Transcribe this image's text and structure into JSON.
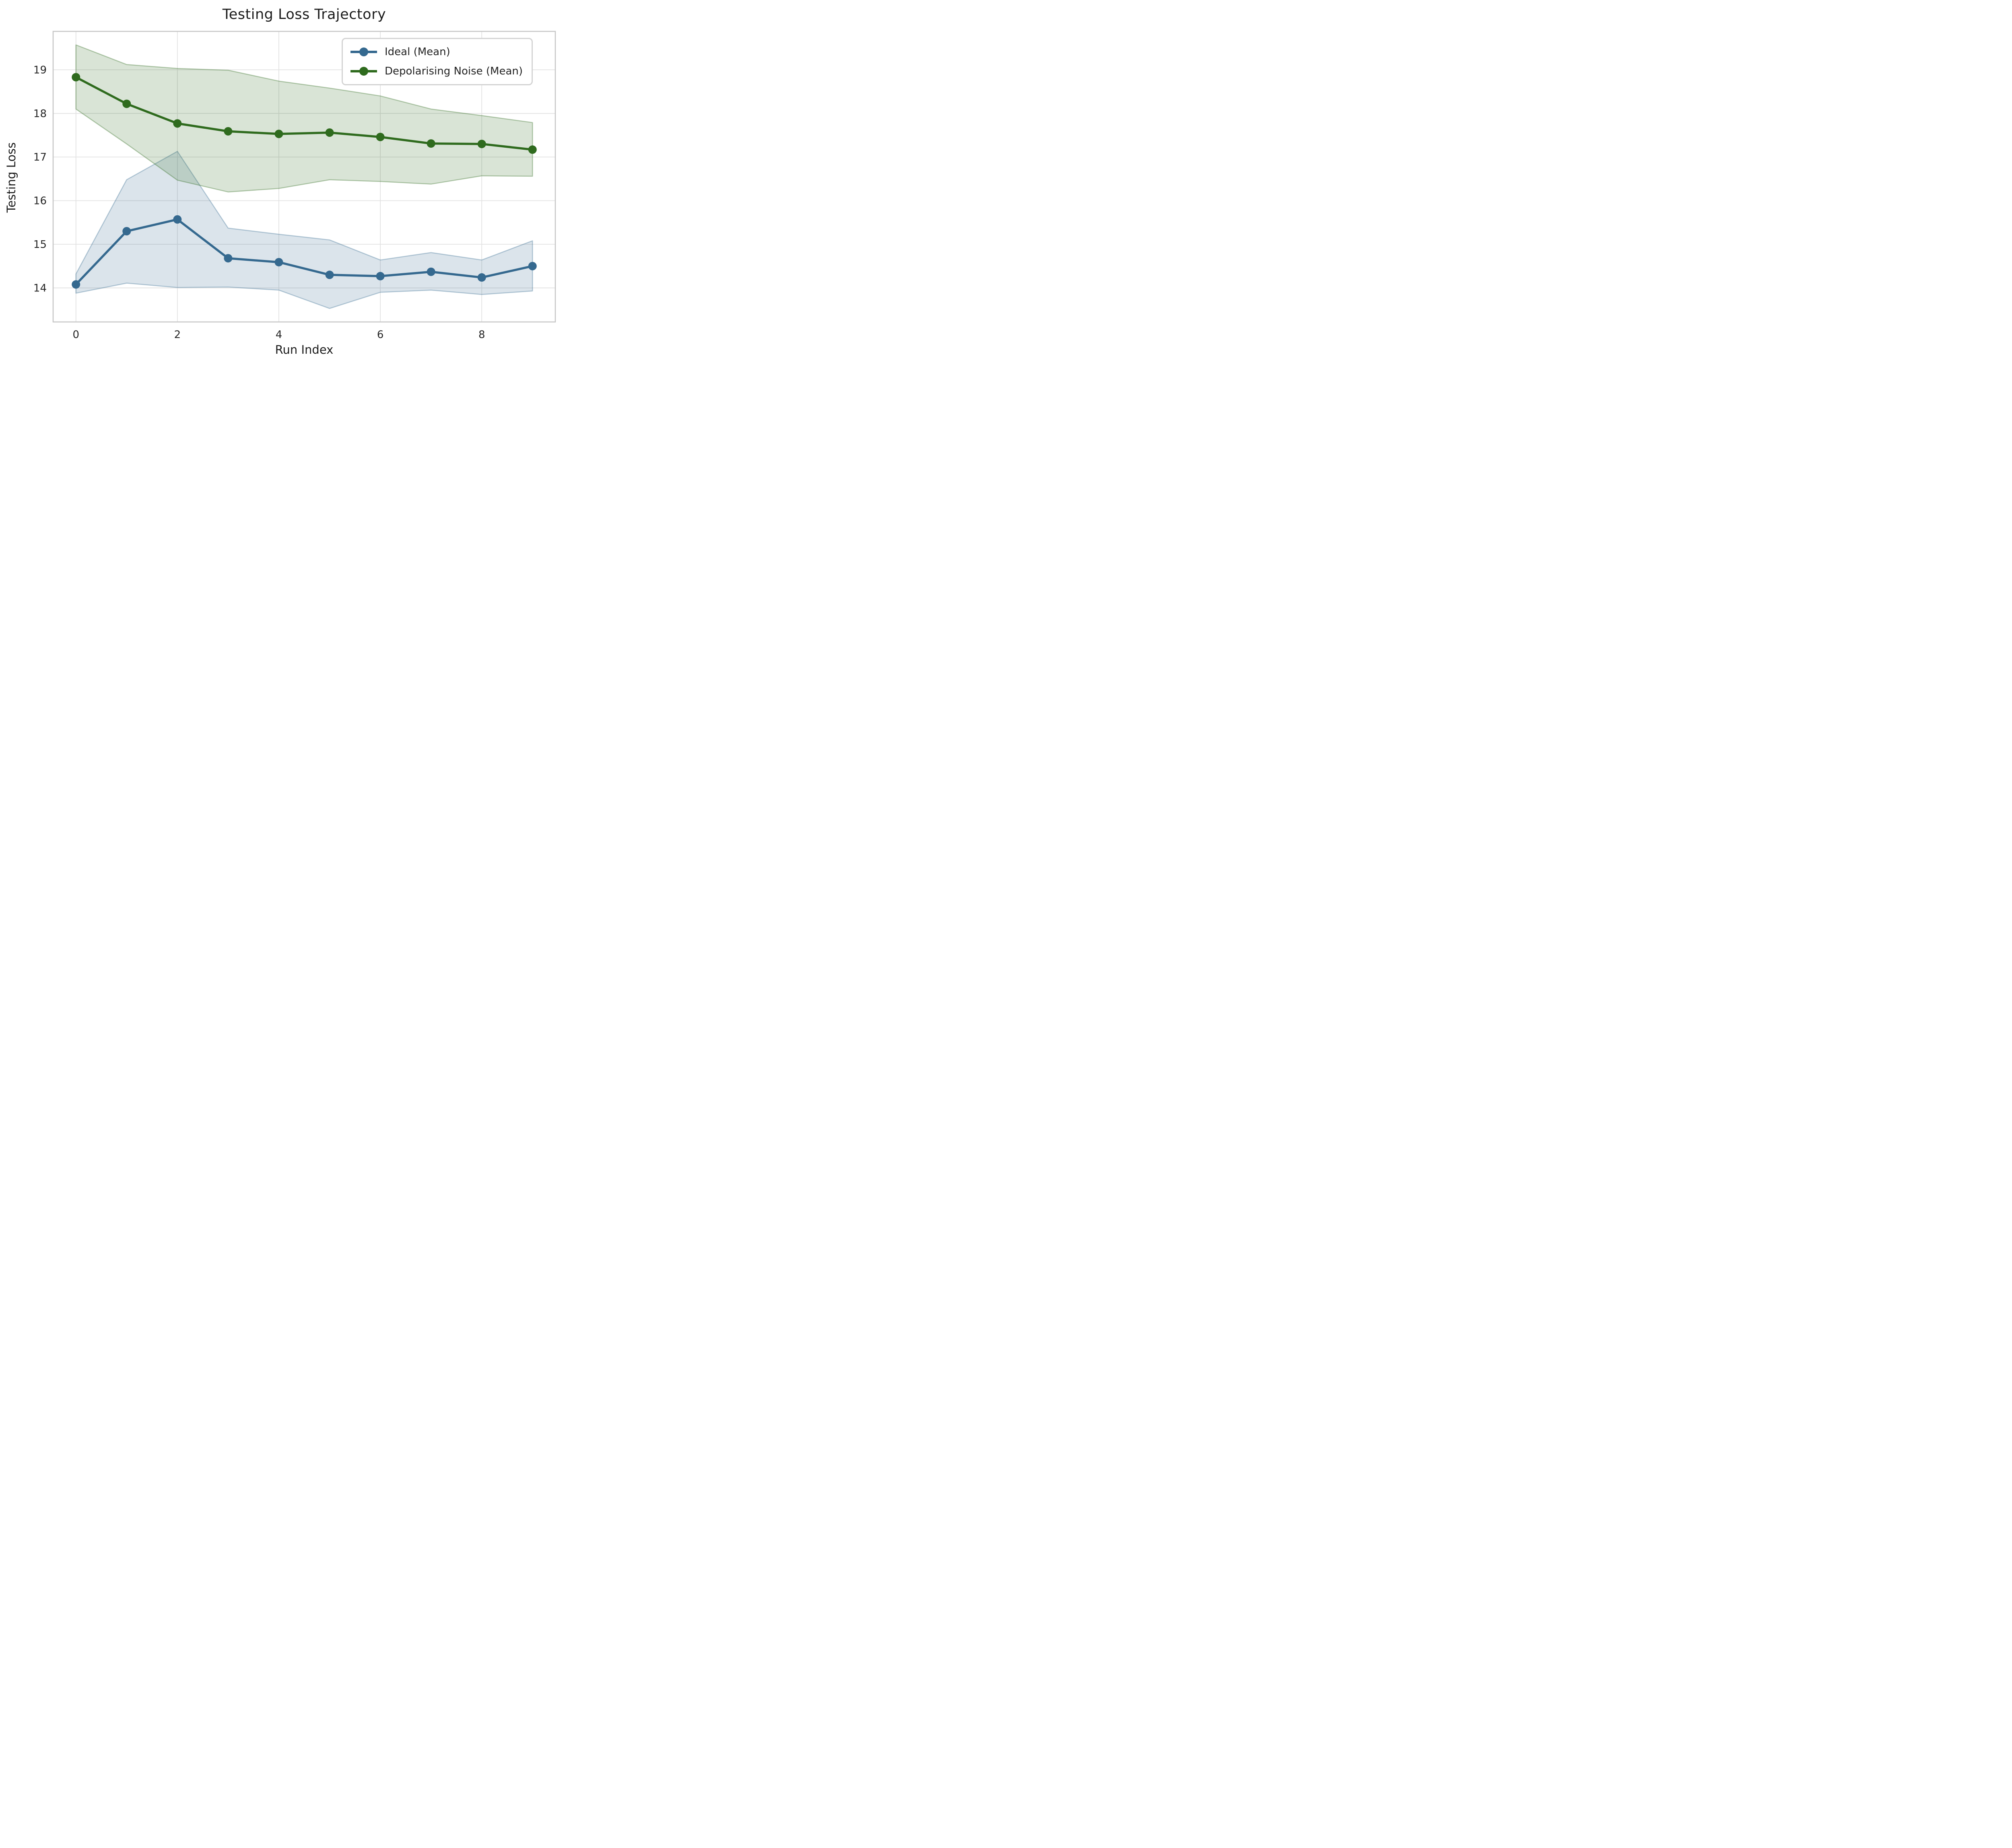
{
  "chart_data": {
    "type": "line",
    "title": "Testing Loss Trajectory",
    "xlabel": "Run Index",
    "ylabel": "Testing Loss",
    "x": [
      0,
      1,
      2,
      3,
      4,
      5,
      6,
      7,
      8,
      9
    ],
    "xticks": [
      0,
      2,
      4,
      6,
      8
    ],
    "yticks": [
      14,
      15,
      16,
      17,
      18,
      19
    ],
    "xlim": [
      -0.45,
      9.45
    ],
    "ylim": [
      13.22,
      19.88
    ],
    "grid": true,
    "legend_position": "upper right",
    "series": [
      {
        "name": "Ideal (Mean)",
        "color": "#35698F",
        "band_fill_rgba": "rgba(53,105,143,0.18)",
        "band_edge_rgba": "rgba(53,105,143,0.35)",
        "values": [
          14.08,
          15.3,
          15.57,
          14.68,
          14.59,
          14.3,
          14.27,
          14.37,
          14.24,
          14.5
        ],
        "band_upper": [
          14.32,
          16.48,
          17.13,
          15.37,
          15.23,
          15.1,
          14.64,
          14.81,
          14.64,
          15.08
        ],
        "band_lower": [
          13.88,
          14.11,
          14.01,
          14.02,
          13.95,
          13.53,
          13.9,
          13.95,
          13.85,
          13.93
        ]
      },
      {
        "name": "Depolarising Noise (Mean)",
        "color": "#2F6B1E",
        "band_fill_rgba": "rgba(47,107,30,0.18)",
        "band_edge_rgba": "rgba(47,107,30,0.35)",
        "values": [
          18.83,
          18.22,
          17.77,
          17.59,
          17.53,
          17.56,
          17.46,
          17.31,
          17.3,
          17.17
        ],
        "band_upper": [
          19.57,
          19.12,
          19.03,
          18.99,
          18.74,
          18.58,
          18.4,
          18.1,
          17.95,
          17.79
        ],
        "band_lower": [
          18.1,
          17.3,
          16.47,
          16.2,
          16.28,
          16.48,
          16.44,
          16.38,
          16.57,
          16.56
        ]
      }
    ],
    "style": {
      "grid_color": "#e2e2e2",
      "spine_color": "#c6c6c6",
      "tick_label_color": "#262626",
      "background": "#ffffff"
    }
  }
}
